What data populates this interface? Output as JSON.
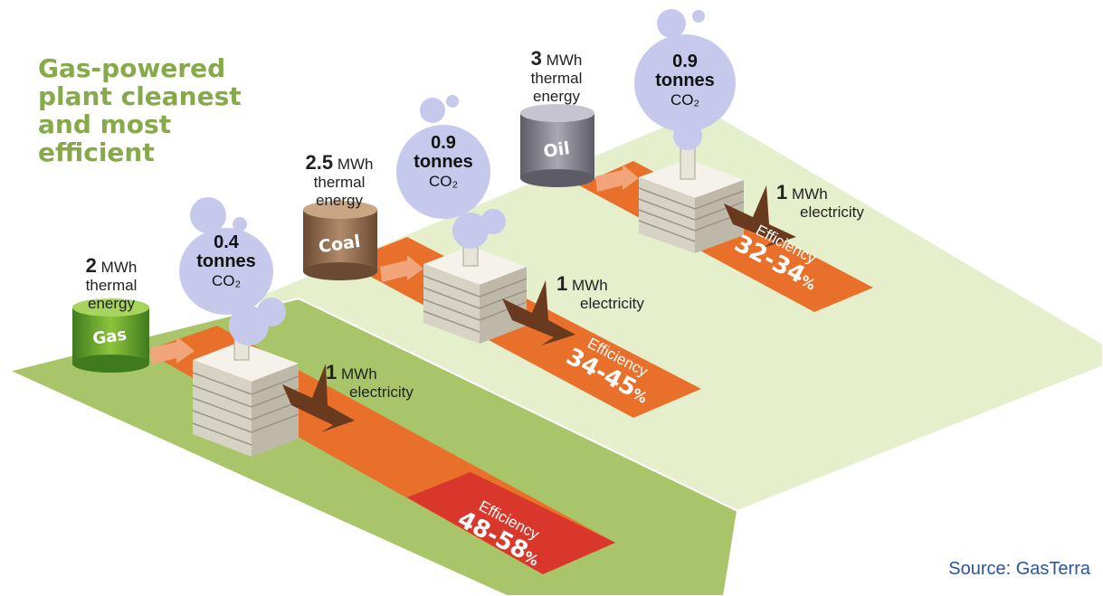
{
  "headline": "Gas-powered plant cleanest and most efficient",
  "headline_lines": [
    "Gas-powered",
    "plant cleanest",
    "and most",
    "efficient"
  ],
  "source": "Source: GasTerra",
  "colors": {
    "headline": "#86a94a",
    "gas_field": "#a9c56a",
    "other_field": "#e6efcc",
    "strip": "#e8702a",
    "efficiency_gas": "#d9362c",
    "smoke": "#c7c9ec",
    "lightning": "#6a3a1e",
    "source_text": "#2a55a0"
  },
  "plants": [
    {
      "fuel": "Gas",
      "thermal_value": "2",
      "thermal_unit": "MWh",
      "thermal_desc_1": "thermal",
      "thermal_desc_2": "energy",
      "co2_value": "0.4",
      "co2_unit": "tonnes",
      "co2_label": "CO₂",
      "electricity_value": "1",
      "electricity_unit": "MWh",
      "electricity_desc": "electricity",
      "efficiency_label": "Efficiency",
      "efficiency_value": "48-58",
      "efficiency_pct": "%"
    },
    {
      "fuel": "Coal",
      "thermal_value": "2.5",
      "thermal_unit": "MWh",
      "thermal_desc_1": "thermal",
      "thermal_desc_2": "energy",
      "co2_value": "0.9",
      "co2_unit": "tonnes",
      "co2_label": "CO₂",
      "electricity_value": "1",
      "electricity_unit": "MWh",
      "electricity_desc": "electricity",
      "efficiency_label": "Efficiency",
      "efficiency_value": "34-45",
      "efficiency_pct": "%"
    },
    {
      "fuel": "Oil",
      "thermal_value": "3",
      "thermal_unit": "MWh",
      "thermal_desc_1": "thermal",
      "thermal_desc_2": "energy",
      "co2_value": "0.9",
      "co2_unit": "tonnes",
      "co2_label": "CO₂",
      "electricity_value": "1",
      "electricity_unit": "MWh",
      "electricity_desc": "electricity",
      "efficiency_label": "Efficiency",
      "efficiency_value": "32-34",
      "efficiency_pct": "%"
    }
  ]
}
